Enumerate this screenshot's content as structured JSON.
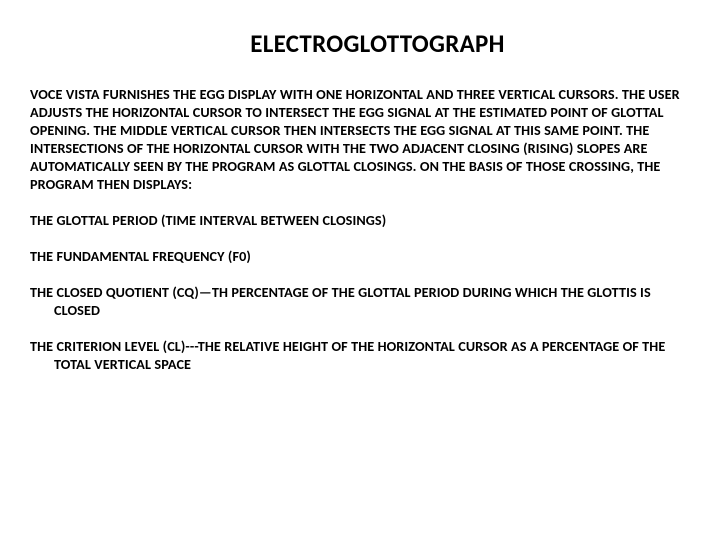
{
  "title": "ELECTROGLOTTOGRAPH",
  "paragraph": "VOCE VISTA FURNISHES THE EGG DISPLAY WITH ONE HORIZONTAL AND THREE VERTICAL CURSORS.  THE USER ADJUSTS THE HORIZONTAL CURSOR TO INTERSECT THE EGG SIGNAL AT THE ESTIMATED POINT OF GLOTTAL OPENING.  THE MIDDLE VERTICAL CURSOR THEN INTERSECTS THE EGG SIGNAL AT THIS SAME POINT.  THE INTERSECTIONS OF THE HORIZONTAL CURSOR WITH THE TWO ADJACENT CLOSING (RISING) SLOPES ARE AUTOMATICALLY SEEN BY THE PROGRAM AS GLOTTAL CLOSINGS.  ON THE BASIS OF THOSE CROSSING, THE PROGRAM THEN DISPLAYS:",
  "items": {
    "period": "THE GLOTTAL PERIOD (TIME INTERVAL BETWEEN CLOSINGS)",
    "f0": "THE FUNDAMENTAL FREQUENCY (F0)",
    "cq": "THE CLOSED QUOTIENT (CQ)—TH PERCENTAGE OF THE GLOTTAL PERIOD DURING WHICH THE GLOTTIS IS CLOSED",
    "cl": "THE CRITERION LEVEL (CL)---THE RELATIVE HEIGHT OF THE HORIZONTAL CURSOR AS A PERCENTAGE OF THE TOTAL VERTICAL SPACE"
  },
  "style": {
    "background_color": "#ffffff",
    "text_color": "#000000",
    "title_fontsize": 25,
    "body_fontsize": 14.2,
    "font_family": "Calibri, Arial, sans-serif",
    "title_weight": 700,
    "body_weight": 700,
    "line_height": 1.27
  }
}
